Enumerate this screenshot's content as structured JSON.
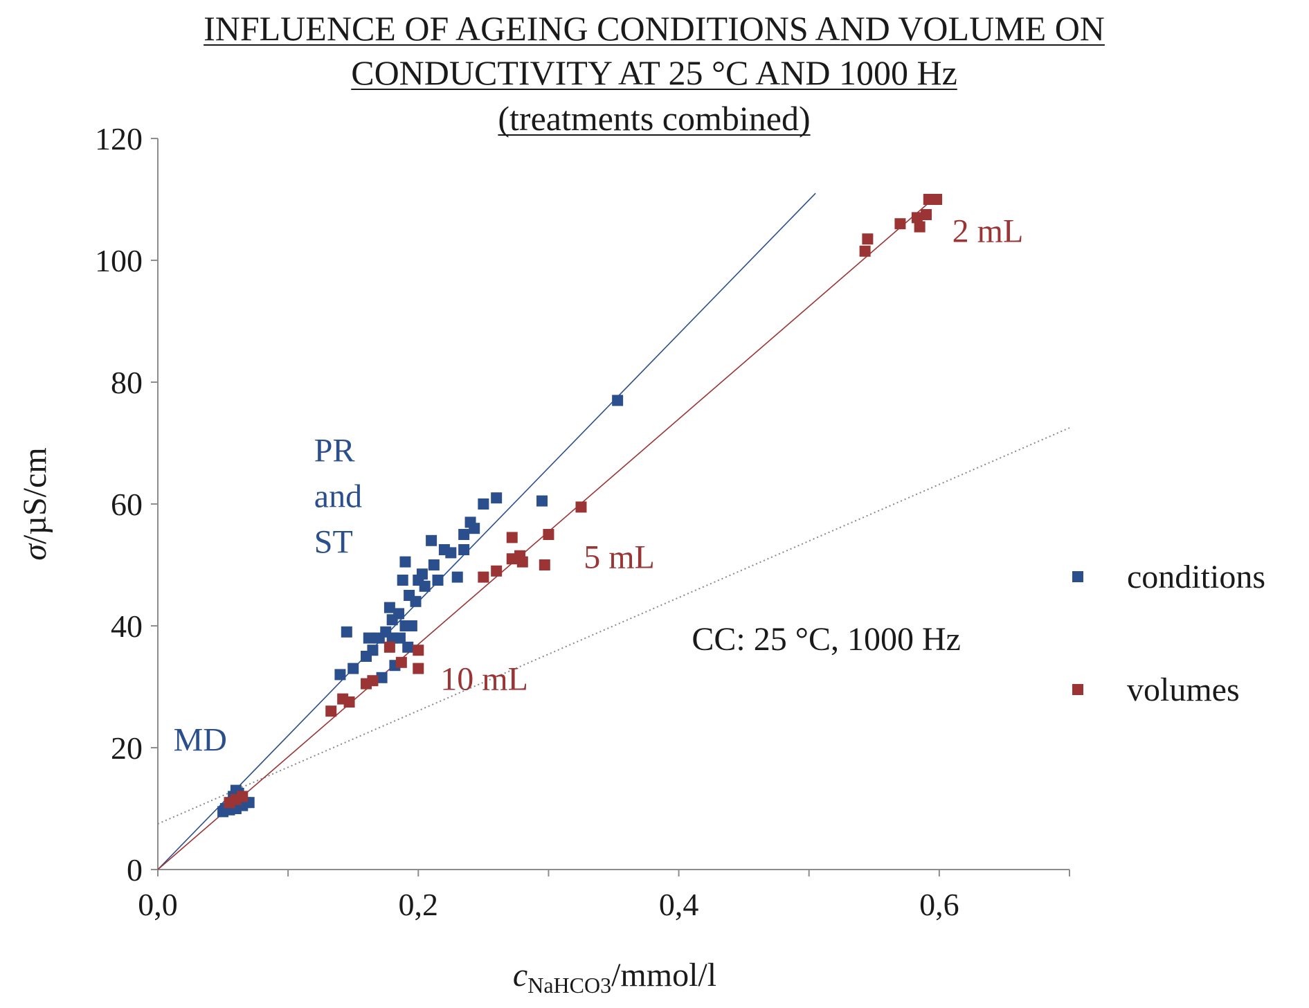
{
  "chart_data": {
    "type": "scatter",
    "title": [
      "INFLUENCE OF AGEING CONDITIONS AND VOLUME ON",
      "CONDUCTIVITY AT 25 °C AND 1000 Hz",
      "(treatments combined)"
    ],
    "xlabel": {
      "main": "c",
      "sub": "NaHCO3",
      "unit": "/mmol/l"
    },
    "ylabel": {
      "sym": "σ",
      "unit": "/µS/cm"
    },
    "xlim": [
      0,
      0.7
    ],
    "ylim": [
      0,
      120
    ],
    "xticks": [
      {
        "value": 0,
        "label": "0,0"
      },
      {
        "value": 0.2,
        "label": "0,2"
      },
      {
        "value": 0.4,
        "label": "0,4"
      },
      {
        "value": 0.6,
        "label": "0,6"
      }
    ],
    "yticks": [
      {
        "value": 0,
        "label": "0"
      },
      {
        "value": 20,
        "label": "20"
      },
      {
        "value": 40,
        "label": "40"
      },
      {
        "value": 60,
        "label": "60"
      },
      {
        "value": 80,
        "label": "80"
      },
      {
        "value": 100,
        "label": "100"
      },
      {
        "value": 120,
        "label": "120"
      }
    ],
    "series": [
      {
        "name": "conditions",
        "color": "#2b4f8c",
        "points": [
          [
            0.05,
            9.5
          ],
          [
            0.052,
            10
          ],
          [
            0.055,
            10.5
          ],
          [
            0.057,
            11
          ],
          [
            0.058,
            12
          ],
          [
            0.06,
            13
          ],
          [
            0.062,
            12.5
          ],
          [
            0.063,
            11.5
          ],
          [
            0.065,
            10.5
          ],
          [
            0.067,
            11
          ],
          [
            0.07,
            11
          ],
          [
            0.06,
            10
          ],
          [
            0.055,
            9.8
          ],
          [
            0.14,
            32
          ],
          [
            0.145,
            39
          ],
          [
            0.15,
            33
          ],
          [
            0.16,
            35
          ],
          [
            0.162,
            38
          ],
          [
            0.165,
            36
          ],
          [
            0.17,
            38
          ],
          [
            0.172,
            31.5
          ],
          [
            0.175,
            39
          ],
          [
            0.178,
            43
          ],
          [
            0.18,
            38
          ],
          [
            0.18,
            41
          ],
          [
            0.182,
            33.5
          ],
          [
            0.185,
            42
          ],
          [
            0.186,
            38
          ],
          [
            0.188,
            47.5
          ],
          [
            0.19,
            40
          ],
          [
            0.19,
            50.5
          ],
          [
            0.192,
            36.5
          ],
          [
            0.193,
            45
          ],
          [
            0.195,
            40
          ],
          [
            0.198,
            44
          ],
          [
            0.2,
            47.5
          ],
          [
            0.203,
            48.5
          ],
          [
            0.205,
            46.5
          ],
          [
            0.21,
            54
          ],
          [
            0.212,
            50
          ],
          [
            0.215,
            47.5
          ],
          [
            0.22,
            52.5
          ],
          [
            0.225,
            52
          ],
          [
            0.23,
            48
          ],
          [
            0.235,
            52.5
          ],
          [
            0.235,
            55
          ],
          [
            0.24,
            57
          ],
          [
            0.243,
            56
          ],
          [
            0.25,
            60
          ],
          [
            0.26,
            61
          ],
          [
            0.295,
            60.5
          ],
          [
            0.353,
            77
          ]
        ],
        "fit": {
          "x0": 0,
          "y0": 0,
          "x1": 0.505,
          "y1": 111
        }
      },
      {
        "name": "volumes",
        "color": "#9b3535",
        "points": [
          [
            0.055,
            11
          ],
          [
            0.06,
            11.5
          ],
          [
            0.065,
            12
          ],
          [
            0.133,
            26
          ],
          [
            0.142,
            28
          ],
          [
            0.147,
            27.5
          ],
          [
            0.16,
            30.5
          ],
          [
            0.165,
            31
          ],
          [
            0.178,
            36.5
          ],
          [
            0.187,
            34
          ],
          [
            0.2,
            36
          ],
          [
            0.2,
            33
          ],
          [
            0.25,
            48
          ],
          [
            0.26,
            49
          ],
          [
            0.272,
            54.5
          ],
          [
            0.272,
            51
          ],
          [
            0.278,
            51.5
          ],
          [
            0.28,
            50.5
          ],
          [
            0.3,
            55
          ],
          [
            0.297,
            50
          ],
          [
            0.325,
            59.5
          ],
          [
            0.543,
            101.5
          ],
          [
            0.545,
            103.5
          ],
          [
            0.57,
            106
          ],
          [
            0.583,
            107
          ],
          [
            0.585,
            105.5
          ],
          [
            0.59,
            107.5
          ],
          [
            0.592,
            110
          ],
          [
            0.598,
            110
          ]
        ],
        "fit": {
          "x0": 0,
          "y0": 0,
          "x1": 0.595,
          "y1": 110
        }
      }
    ],
    "reference_line": {
      "name": "CC: 25 °C, 1000 Hz",
      "color": "#888888",
      "x0": 0,
      "y0": 7.5,
      "x1": 0.7,
      "y1": 72.5
    },
    "annotations": [
      {
        "id": "pr",
        "lines": [
          "PR",
          "and",
          "ST"
        ],
        "color": "#2b4f8c",
        "x": 0.12,
        "y": 67
      },
      {
        "id": "md",
        "lines": [
          "MD"
        ],
        "color": "#2b4f8c",
        "x": 0.012,
        "y": 19.5
      },
      {
        "id": "v2",
        "lines": [
          "2 mL"
        ],
        "color": "#9b3535",
        "x": 0.61,
        "y": 103
      },
      {
        "id": "v5",
        "lines": [
          "5 mL"
        ],
        "color": "#9b3535",
        "x": 0.327,
        "y": 49.5
      },
      {
        "id": "v10",
        "lines": [
          "10 mL"
        ],
        "color": "#9b3535",
        "x": 0.217,
        "y": 29.5
      },
      {
        "id": "cc",
        "lines": [
          "CC: 25 °C, 1000 Hz"
        ],
        "color": "#1a1a1a",
        "x": 0.41,
        "y": 36
      }
    ],
    "legend": {
      "position": "right",
      "items": [
        "conditions",
        "volumes"
      ]
    }
  }
}
